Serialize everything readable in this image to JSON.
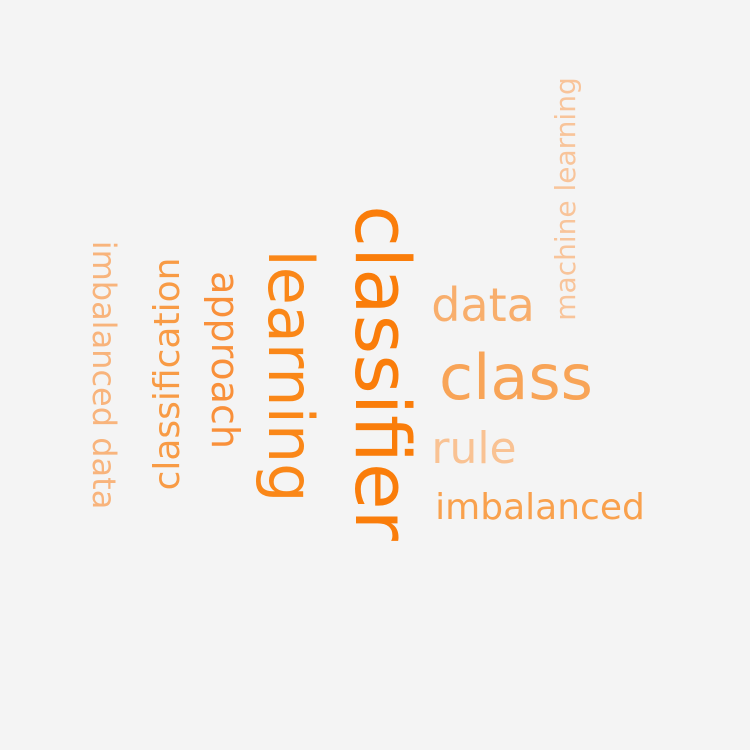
{
  "words": [
    {
      "text": "classifier",
      "color": "#fa7d0a"
    },
    {
      "text": "learning",
      "color": "#fa8718"
    },
    {
      "text": "class",
      "color": "#f8a457"
    },
    {
      "text": "data",
      "color": "#f8ae6c"
    },
    {
      "text": "approach",
      "color": "#f9903a"
    },
    {
      "text": "classification",
      "color": "#f89b45"
    },
    {
      "text": "imbalanced",
      "color": "#f9a14d"
    },
    {
      "text": "rule",
      "color": "#f9c293"
    },
    {
      "text": "machine learning",
      "color": "#f8c49a"
    },
    {
      "text": "imbalanced data",
      "color": "#f8b47c"
    }
  ]
}
